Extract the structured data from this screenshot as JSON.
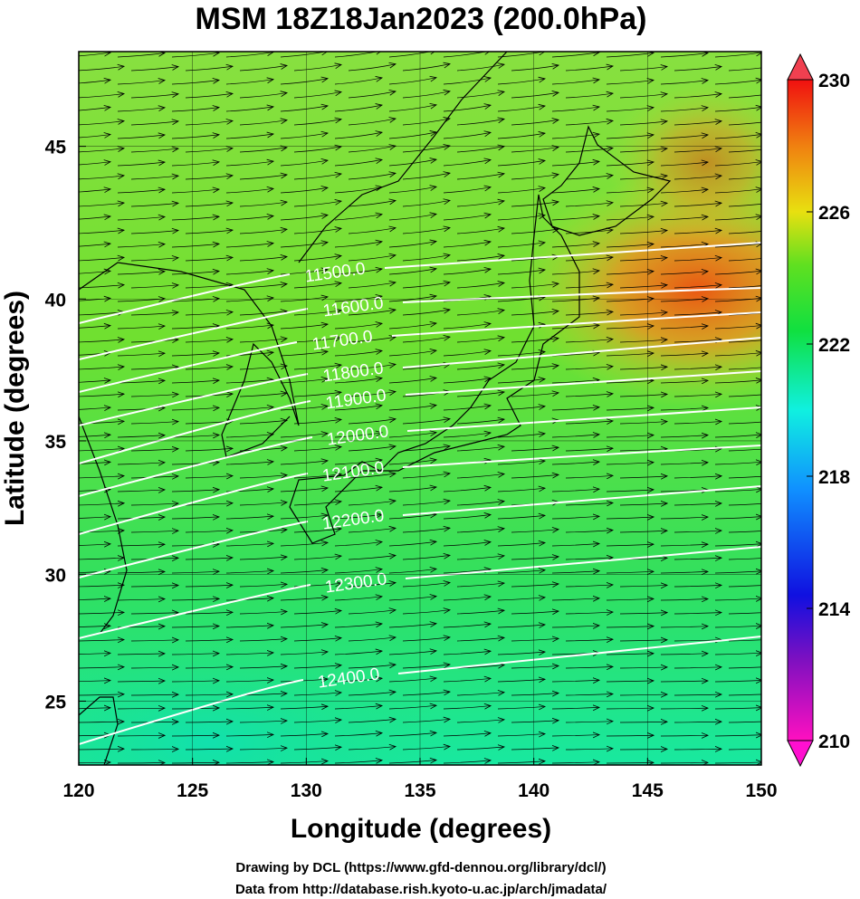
{
  "chart_data": {
    "type": "map",
    "title": "MSM 18Z18Jan2023 (200.0hPa)",
    "x_label": "Longitude (degrees)",
    "y_label": "Latitude  (degrees)",
    "xlim": [
      120,
      150
    ],
    "ylim": [
      22.4,
      47.9
    ],
    "xticks": [
      120,
      125,
      130,
      135,
      140,
      145,
      150
    ],
    "yticks": [
      25,
      30,
      35,
      40,
      45
    ],
    "colorbar": {
      "clim": [
        210,
        230
      ],
      "ticks": [
        210,
        214,
        218,
        222,
        226,
        230
      ]
    },
    "contours": {
      "levels": [
        11500,
        11600,
        11700,
        11800,
        11900,
        12000,
        12100,
        12200,
        12300,
        12400
      ],
      "level_labels": [
        "11500.0",
        "11600.0",
        "11700.0",
        "11800.0",
        "11900.0",
        "12000.0",
        "12100.0",
        "12200.0",
        "12300.0",
        "12400.0"
      ]
    },
    "credits": [
      "Drawing by DCL (https://www.gfd-dennou.org/library/dcl/)",
      "Data from http://database.rish.kyoto-u.ac.jp/arch/jmadata/"
    ]
  }
}
